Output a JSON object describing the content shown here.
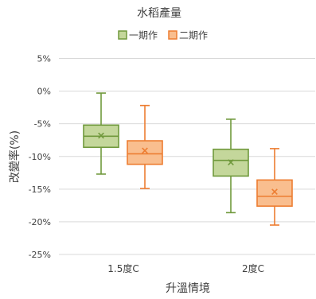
{
  "chart_data": {
    "type": "boxplot",
    "title": "水稻產量",
    "xlabel": "升溫情境",
    "ylabel": "改變率(%)",
    "ylim": [
      -25,
      5
    ],
    "yticks": [
      5,
      0,
      -5,
      -10,
      -15,
      -20,
      -25
    ],
    "ytick_labels": [
      "5%",
      "0%",
      "-5%",
      "-10%",
      "-15%",
      "-20%",
      "-25%"
    ],
    "grid": true,
    "legend_position": "top",
    "categories": [
      "1.5度C",
      "2度C"
    ],
    "series": [
      {
        "name": "一期作",
        "color": "#70993c",
        "fill": "#c4d79b",
        "boxes": [
          {
            "min": -12.7,
            "q1": -8.6,
            "median": -6.9,
            "q3": -5.2,
            "max": -0.3,
            "mean": -6.8
          },
          {
            "min": -18.6,
            "q1": -13.0,
            "median": -10.6,
            "q3": -8.9,
            "max": -4.3,
            "mean": -10.9
          }
        ]
      },
      {
        "name": "二期作",
        "color": "#ed7d31",
        "fill": "#f9be8f",
        "boxes": [
          {
            "min": -14.9,
            "q1": -11.2,
            "median": -9.6,
            "q3": -7.6,
            "max": -2.2,
            "mean": -9.1
          },
          {
            "min": -20.5,
            "q1": -17.6,
            "median": -16.1,
            "q3": -13.6,
            "max": -8.8,
            "mean": -15.4
          }
        ]
      }
    ]
  }
}
